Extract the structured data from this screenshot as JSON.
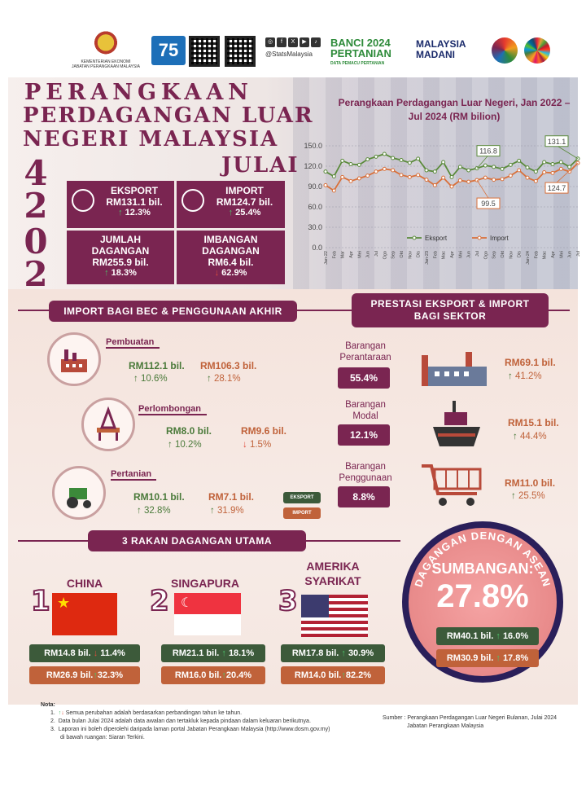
{
  "header": {
    "ministry": "KEMENTERIAN EKONOMI",
    "department": "JABATAN PERANGKAAN MALAYSIA",
    "anniversary": "75",
    "social_handle": "@StatsMalaysia",
    "banci_line1": "BANCI 2024",
    "banci_line2": "PERTANIAN",
    "banci_tagline": "DATA PEMACU PERTANIAN",
    "madani_line1": "MALAYSIA",
    "madani_line2": "MADANI"
  },
  "title": {
    "line1": "PERANGKAAN",
    "line2": "PERDAGANGAN LUAR",
    "line3": "NEGERI MALAYSIA",
    "month": "JULAI",
    "year_digits": [
      "2",
      "0",
      "2",
      "4"
    ]
  },
  "stats": {
    "eksport": {
      "label": "EKSPORT",
      "value": "RM131.1 bil.",
      "change": "12.3%"
    },
    "import": {
      "label": "IMPORT",
      "value": "RM124.7 bil.",
      "change": "25.4%"
    },
    "jumlah": {
      "label1": "JUMLAH",
      "label2": "DAGANGAN",
      "value": "RM255.9 bil.",
      "change": "18.3%"
    },
    "imbangan": {
      "label1": "IMBANGAN",
      "label2": "DAGANGAN",
      "value": "RM6.4 bil.",
      "change": "62.9%"
    }
  },
  "chart_data": {
    "type": "line",
    "title": "Perangkaan Perdagangan Luar Negeri, Jan 2022 – Jul 2024 (RM bilion)",
    "x": [
      "Jan-22",
      "Feb",
      "Mar",
      "Apr",
      "Mei",
      "Jun",
      "Jul",
      "Ogo",
      "Sep",
      "Okt",
      "Nov",
      "Dis",
      "Jan-23",
      "Feb",
      "Mac",
      "Apr",
      "Mei",
      "Jun",
      "Jul",
      "Ogo",
      "Sep",
      "Okt",
      "Nov",
      "Dis",
      "Jan-24",
      "Feb",
      "Mac",
      "Apr",
      "Mei",
      "Jun",
      "Jul"
    ],
    "yticks": [
      "0.0",
      "30.0",
      "60.0",
      "90.0",
      "120.0",
      "150.0"
    ],
    "ylim": [
      0,
      150
    ],
    "series": [
      {
        "name": "Eksport",
        "color": "#5a8a3a",
        "values": [
          112,
          105,
          128,
          123,
          122,
          130,
          134,
          138,
          132,
          129,
          125,
          131,
          114,
          112,
          126,
          104,
          119,
          114,
          116.8,
          121,
          119,
          116,
          122,
          128,
          118,
          112,
          126,
          123,
          126,
          119,
          131.1
        ]
      },
      {
        "name": "Import",
        "color": "#d9703a",
        "values": [
          92,
          84,
          104,
          98,
          102,
          106,
          112,
          116,
          114,
          107,
          104,
          107,
          100,
          92,
          103,
          90,
          99,
          97,
          99.5,
          103,
          100,
          101,
          106,
          114,
          103,
          98,
          111,
          110,
          116,
          112,
          124.7
        ]
      }
    ],
    "annotations": [
      {
        "x": "Jul",
        "series": "Eksport",
        "label": "116.8"
      },
      {
        "x": "Jul",
        "series": "Import",
        "label": "99.5"
      },
      {
        "x": "Jul",
        "series": "Eksport",
        "label": "131.1"
      },
      {
        "x": "Jul",
        "series": "Import",
        "label": "124.7"
      }
    ],
    "legend": [
      "Eksport",
      "Import"
    ]
  },
  "bec": {
    "heading": "IMPORT BAGI BEC & PENGGUNAAN AKHIR",
    "items": [
      {
        "label": "Pembuatan",
        "ex_value": "RM112.1 bil.",
        "ex_change": "10.6%",
        "im_value": "RM106.3 bil.",
        "im_change": "28.1%"
      },
      {
        "label": "Perlombongan",
        "ex_value": "RM8.0 bil.",
        "ex_change": "10.2%",
        "im_value": "RM9.6 bil.",
        "im_change": "1.5%"
      },
      {
        "label": "Pertanian",
        "ex_value": "RM10.1 bil.",
        "ex_change": "32.8%",
        "im_value": "RM7.1 bil.",
        "im_change": "31.9%"
      }
    ],
    "legend_export": "EKSPORT",
    "legend_import": "IMPORT"
  },
  "sector": {
    "heading_line1": "PRESTASI EKSPORT & IMPORT",
    "heading_line2": "BAGI SEKTOR",
    "items": [
      {
        "label1": "Barangan",
        "label2": "Perantaraan",
        "share": "55.4%",
        "value": "RM69.1 bil.",
        "change": "41.2%"
      },
      {
        "label1": "Barangan",
        "label2": "Modal",
        "share": "12.1%",
        "value": "RM15.1 bil.",
        "change": "44.4%"
      },
      {
        "label1": "Barangan",
        "label2": "Penggunaan",
        "share": "8.8%",
        "value": "RM11.0 bil.",
        "change": "25.5%"
      }
    ]
  },
  "partners": {
    "heading": "3 RAKAN DAGANGAN UTAMA",
    "items": [
      {
        "rank": "1",
        "name1": "CHINA",
        "name2": "",
        "ex": "RM14.8 bil.",
        "ex_change": "11.4%",
        "im": "RM26.9 bil.",
        "im_change": "32.3%"
      },
      {
        "rank": "2",
        "name1": "SINGAPURA",
        "name2": "",
        "ex": "RM21.1 bil.",
        "ex_change": "18.1%",
        "im": "RM16.0 bil.",
        "im_change": "20.4%"
      },
      {
        "rank": "3",
        "name1": "AMERIKA",
        "name2": "SYARIKAT",
        "ex": "RM17.8 bil.",
        "ex_change": "30.9%",
        "im": "RM14.0 bil.",
        "im_change": "82.2%"
      }
    ]
  },
  "asean": {
    "arc_title": "DAGANGAN DENGAN ASEAN",
    "sumbangan_label": "SUMBANGAN:",
    "sumbangan_value": "27.8%",
    "ex": "RM40.1 bil.",
    "ex_change": "16.0%",
    "im": "RM30.9 bil.",
    "im_change": "17.8%"
  },
  "notes": {
    "heading": "Nota:",
    "n1": "Semua perubahan adalah berdasarkan perbandingan tahun ke tahun.",
    "n2": "Data bulan Julai 2024 adalah data awalan dan tertakluk kepada pindaan dalam keluaran berikutnya.",
    "n3a": "Laporan ini boleh diperolehi daripada laman portal Jabatan Perangkaan Malaysia (http://www.dosm.gov.my)",
    "n3b": "di bawah ruangan: Siaran Terkini.",
    "source1": "Sumber : Perangkaan Perdagangan Luar Negeri Bulanan, Julai 2024",
    "source2": "Jabatan Perangkaan Malaysia"
  }
}
